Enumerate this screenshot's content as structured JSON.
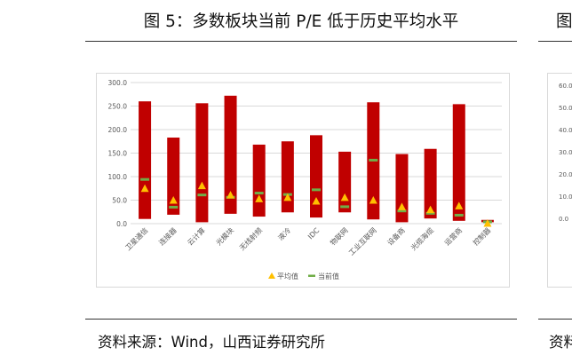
{
  "figure": {
    "title": "图 5：多数板块当前 P/E 低于历史平均水平",
    "source": "资料来源：Wind，山西证券研究所"
  },
  "right_panel": {
    "title_fragment": "图",
    "source_fragment": "资料",
    "yticks": [
      "60.0",
      "50.0",
      "40.0",
      "30.0",
      "20.0",
      "10.0",
      "0.0"
    ]
  },
  "chart_data": {
    "type": "range-bar",
    "categories": [
      "卫星通信",
      "连接器",
      "云计算",
      "光模块",
      "无线射频",
      "液冷",
      "IDC",
      "物联网",
      "工业互联网",
      "设备商",
      "光缆海缆",
      "运营商",
      "控制器"
    ],
    "ylim": [
      0,
      300
    ],
    "yticks": [
      "300.0",
      "250.0",
      "200.0",
      "150.0",
      "100.0",
      "50.0",
      "0.0"
    ],
    "grid": true,
    "legend_position": "bottom",
    "colors": {
      "bar": "#c00000",
      "average": "#ffc000",
      "current": "#70ad47"
    },
    "series": [
      {
        "name": "",
        "role": "range",
        "low": [
          10,
          19,
          3,
          21,
          15,
          24,
          13,
          24,
          9,
          3,
          11,
          6,
          3
        ],
        "high": [
          260,
          183,
          256,
          272,
          168,
          175,
          188,
          153,
          258,
          148,
          159,
          254,
          8
        ]
      },
      {
        "name": "平均值",
        "role": "average-marker",
        "values": [
          75,
          50,
          81,
          61,
          53,
          56,
          48,
          56,
          50,
          36,
          30,
          38,
          1
        ]
      },
      {
        "name": "当前值",
        "role": "current-marker",
        "values": [
          94,
          35,
          61,
          56,
          65,
          62,
          72,
          36,
          135,
          27,
          22,
          18,
          4
        ]
      }
    ]
  }
}
